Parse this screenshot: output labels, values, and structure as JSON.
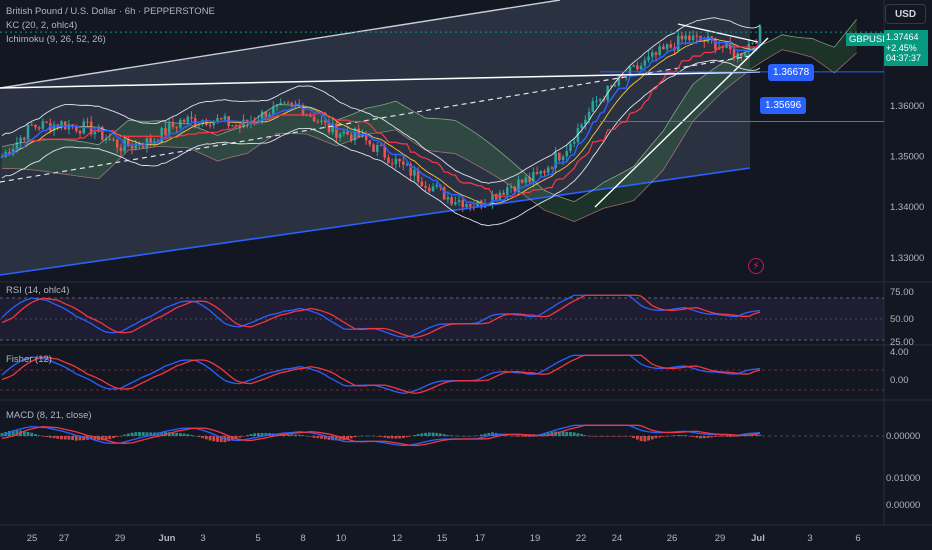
{
  "header": {
    "title": "British Pound / U.S. Dollar · 6h · PEPPERSTONE",
    "indicator_kc": "KC (20, 2, ohlc4)",
    "indicator_ichimoku": "Ichimoku (9, 26, 52, 26)",
    "currency_button": "USD"
  },
  "price_tag": {
    "symbol": "GBPUSD",
    "price": "1.37464",
    "change": "+2.45%",
    "countdown": "04:37:37"
  },
  "blue_tags": [
    "1.36678",
    "1.35696"
  ],
  "panes": {
    "rsi_label": "RSI (14, ohlc4)",
    "fisher_label": "Fisher (12)",
    "macd_label": "MACD (8, 21, close)"
  },
  "axes": {
    "price_ticks": [
      "1.36000",
      "1.35000",
      "1.34000",
      "1.33000"
    ],
    "rsi_ticks": [
      "75.00",
      "50.00",
      "25.00"
    ],
    "fisher_ticks": [
      "4.00",
      "0.00"
    ],
    "macd_ticks": [
      "0.00000",
      "0.01000",
      "0.00000"
    ],
    "time_ticks": [
      "25",
      "27",
      "29",
      "Jun",
      "3",
      "5",
      "8",
      "10",
      "12",
      "15",
      "17",
      "19",
      "22",
      "24",
      "26",
      "29",
      "Jul",
      "3",
      "6"
    ]
  },
  "colors": {
    "background": "#131722",
    "up": "#26a69a",
    "down": "#ef5350",
    "blue": "#2962ff",
    "accent_tag": "#089981"
  },
  "chart_data": {
    "type": "candlestick",
    "symbol": "GBPUSD",
    "interval": "6h",
    "ylim": [
      1.326,
      1.381
    ],
    "close_path": [
      [
        0,
        1.35
      ],
      [
        8,
        1.356
      ],
      [
        16,
        1.3565
      ],
      [
        24,
        1.3555
      ],
      [
        32,
        1.352
      ],
      [
        40,
        1.353
      ],
      [
        48,
        1.357
      ],
      [
        56,
        1.3575
      ],
      [
        64,
        1.356
      ],
      [
        72,
        1.359
      ],
      [
        80,
        1.36
      ],
      [
        88,
        1.3555
      ],
      [
        96,
        1.354
      ],
      [
        104,
        1.35
      ],
      [
        112,
        1.346
      ],
      [
        120,
        1.342
      ],
      [
        128,
        1.3405
      ],
      [
        136,
        1.344
      ],
      [
        144,
        1.346
      ],
      [
        152,
        1.352
      ],
      [
        160,
        1.361
      ],
      [
        168,
        1.366
      ],
      [
        176,
        1.37
      ],
      [
        184,
        1.3735
      ],
      [
        192,
        1.3725
      ],
      [
        198,
        1.37
      ],
      [
        204,
        1.3746
      ]
    ],
    "bar_count": 205,
    "date_range": "May 25 – Jun 30",
    "lines": [
      {
        "name": "GBPUSD",
        "value": 1.37464
      },
      {
        "name": "",
        "value": 1.36678
      },
      {
        "name": "",
        "value": 1.35696
      }
    ]
  }
}
